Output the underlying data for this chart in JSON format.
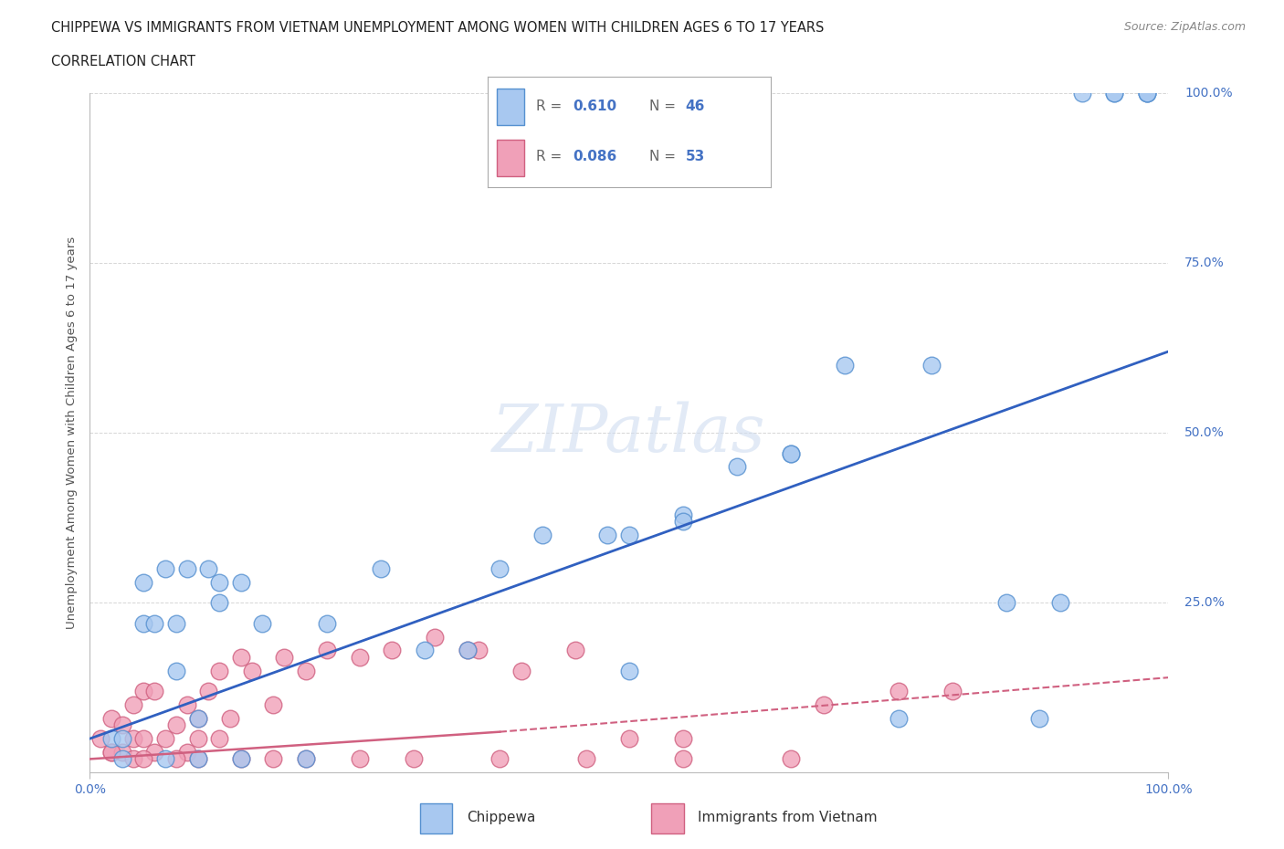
{
  "title_line1": "CHIPPEWA VS IMMIGRANTS FROM VIETNAM UNEMPLOYMENT AMONG WOMEN WITH CHILDREN AGES 6 TO 17 YEARS",
  "title_line2": "CORRELATION CHART",
  "source_text": "Source: ZipAtlas.com",
  "watermark": "ZIPatlas",
  "ylabel": "Unemployment Among Women with Children Ages 6 to 17 years",
  "xlim": [
    0,
    100
  ],
  "ylim": [
    0,
    100
  ],
  "color_chippewa_fill": "#a8c8f0",
  "color_chippewa_edge": "#5590d0",
  "color_vietnam_fill": "#f0a0b8",
  "color_vietnam_edge": "#d06080",
  "color_chippewa_line": "#3060c0",
  "color_vietnam_line": "#d06080",
  "chippewa_x": [
    2,
    3,
    5,
    6,
    7,
    8,
    9,
    10,
    11,
    12,
    14,
    16,
    22,
    27,
    31,
    38,
    42,
    50,
    55,
    60,
    65,
    70,
    78,
    85,
    90,
    95,
    98,
    3,
    7,
    10,
    14,
    20,
    50,
    65,
    75,
    88,
    92,
    95,
    98,
    98,
    5,
    8,
    12,
    35,
    48,
    55
  ],
  "chippewa_y": [
    5,
    5,
    22,
    22,
    30,
    22,
    30,
    8,
    30,
    28,
    28,
    22,
    22,
    30,
    18,
    30,
    35,
    35,
    38,
    45,
    47,
    60,
    60,
    25,
    25,
    100,
    100,
    2,
    2,
    2,
    2,
    2,
    15,
    47,
    8,
    8,
    100,
    100,
    100,
    100,
    28,
    15,
    25,
    18,
    35,
    37
  ],
  "vietnam_x": [
    1,
    2,
    2,
    3,
    3,
    4,
    4,
    5,
    5,
    6,
    6,
    7,
    8,
    9,
    9,
    10,
    10,
    11,
    12,
    12,
    13,
    14,
    15,
    17,
    18,
    20,
    22,
    25,
    28,
    32,
    36,
    2,
    4,
    5,
    8,
    10,
    14,
    17,
    20,
    25,
    30,
    38,
    46,
    55,
    68,
    75,
    80,
    35,
    40,
    45,
    50,
    55,
    65
  ],
  "vietnam_y": [
    5,
    3,
    8,
    3,
    7,
    5,
    10,
    5,
    12,
    3,
    12,
    5,
    7,
    3,
    10,
    5,
    8,
    12,
    5,
    15,
    8,
    17,
    15,
    10,
    17,
    15,
    18,
    17,
    18,
    20,
    18,
    3,
    2,
    2,
    2,
    2,
    2,
    2,
    2,
    2,
    2,
    2,
    2,
    2,
    10,
    12,
    12,
    18,
    15,
    18,
    5,
    5,
    2
  ],
  "chippewa_line_x0": 0,
  "chippewa_line_y0": 5,
  "chippewa_line_x1": 100,
  "chippewa_line_y1": 62,
  "vietnam_solid_x0": 0,
  "vietnam_solid_y0": 2,
  "vietnam_solid_x1": 38,
  "vietnam_solid_y1": 6,
  "vietnam_dash_x0": 38,
  "vietnam_dash_y0": 6,
  "vietnam_dash_x1": 100,
  "vietnam_dash_y1": 14
}
